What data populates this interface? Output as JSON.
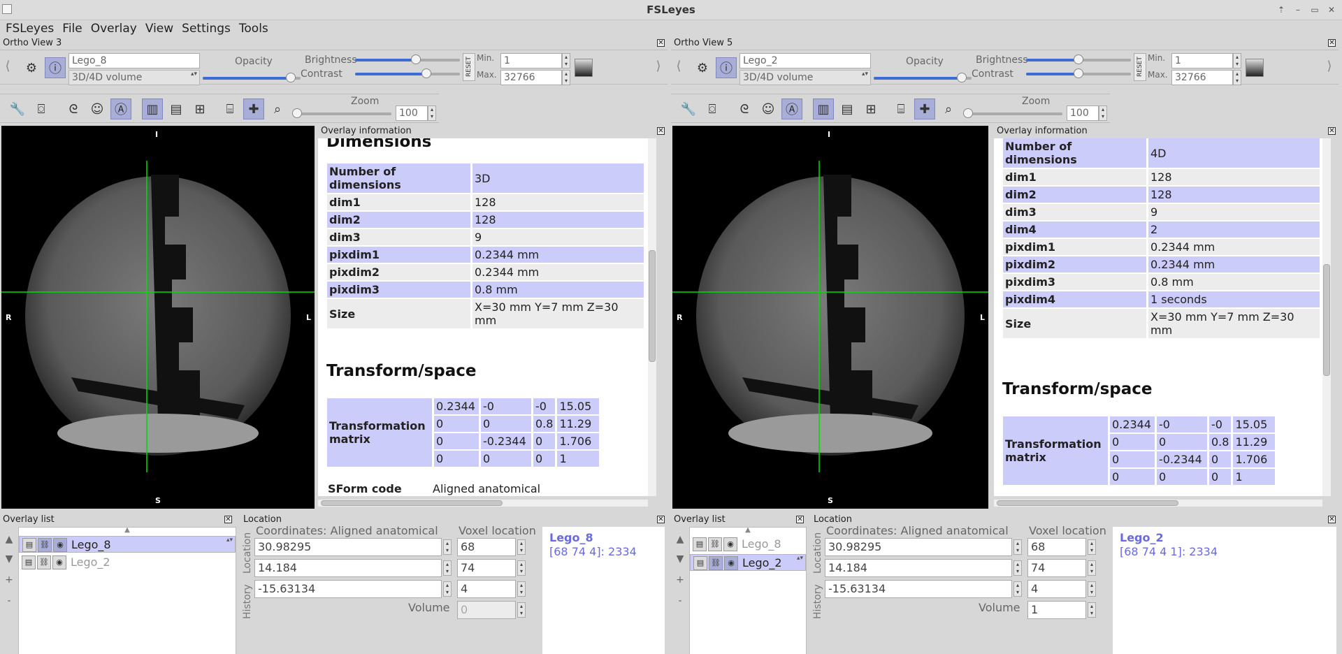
{
  "window": {
    "title": "FSLeyes"
  },
  "menu": [
    "FSLeyes",
    "File",
    "Overlay",
    "View",
    "Settings",
    "Tools"
  ],
  "views": [
    {
      "title": "Ortho View 3",
      "overlay_name": "Lego_8",
      "overlay_type": "3D/4D volume",
      "opacity_label": "Opacity",
      "opacity": 0.9,
      "brightness_label": "Brightness",
      "brightness": 0.58,
      "contrast_label": "Contrast",
      "contrast": 0.68,
      "reset_label": "RESET",
      "min_label": "Min.",
      "min_value": "1",
      "max_label": "Max.",
      "max_value": "32766",
      "zoom_label": "Zoom",
      "zoom_value": "100",
      "orient": {
        "top": "I",
        "bottom": "S",
        "left": "R",
        "right": "L"
      },
      "info": {
        "panel_title": "Overlay information",
        "dimensions_heading": "Dimensions",
        "dimensions": [
          {
            "key": "Number of dimensions",
            "value": "3D"
          },
          {
            "key": "dim1",
            "value": "128"
          },
          {
            "key": "dim2",
            "value": "128"
          },
          {
            "key": "dim3",
            "value": "9"
          },
          {
            "key": "pixdim1",
            "value": "0.2344 mm"
          },
          {
            "key": "pixdim2",
            "value": "0.2344 mm"
          },
          {
            "key": "pixdim3",
            "value": "0.8 mm"
          },
          {
            "key": "Size",
            "value": "X=30 mm Y=7 mm Z=30 mm"
          }
        ],
        "transform_heading": "Transform/space",
        "matrix_label": "Transformation matrix",
        "matrix": [
          [
            "0.2344",
            "-0",
            "-0",
            "15.05"
          ],
          [
            "0",
            "0",
            "0.8",
            "11.29"
          ],
          [
            "0",
            "-0.2344",
            "0",
            "1.706"
          ],
          [
            "0",
            "0",
            "0",
            "1"
          ]
        ],
        "sform_label": "SForm code",
        "sform_value": "Aligned anatomical"
      },
      "overlay_list": {
        "title": "Overlay list",
        "items": [
          {
            "name": "Lego_8",
            "selected": true,
            "visible": true
          },
          {
            "name": "Lego_2",
            "selected": false,
            "visible": false
          }
        ]
      },
      "location": {
        "title": "Location",
        "coord_label": "Coordinates: Aligned anatomical",
        "voxel_label": "Voxel location",
        "coords": [
          "30.98295",
          "14.184",
          "-15.63134"
        ],
        "voxels": [
          "68",
          "74",
          "4"
        ],
        "volume_label": "Volume",
        "volume_value": "0",
        "volume_enabled": false,
        "tab_location": "Location",
        "tab_history": "History",
        "info_name": "Lego_8",
        "info_value": "[68 74 4]: 2334"
      }
    },
    {
      "title": "Ortho View 5",
      "overlay_name": "Lego_2",
      "overlay_type": "3D/4D volume",
      "opacity_label": "Opacity",
      "opacity": 0.9,
      "brightness_label": "Brightness",
      "brightness": 0.5,
      "contrast_label": "Contrast",
      "contrast": 0.5,
      "reset_label": "RESET",
      "min_label": "Min.",
      "min_value": "1",
      "max_label": "Max.",
      "max_value": "32766",
      "zoom_label": "Zoom",
      "zoom_value": "100",
      "orient": {
        "top": "I",
        "bottom": "S",
        "left": "R",
        "right": "L"
      },
      "info": {
        "panel_title": "Overlay information",
        "dimensions_heading": "",
        "dimensions": [
          {
            "key": "Number of dimensions",
            "value": "4D"
          },
          {
            "key": "dim1",
            "value": "128"
          },
          {
            "key": "dim2",
            "value": "128"
          },
          {
            "key": "dim3",
            "value": "9"
          },
          {
            "key": "dim4",
            "value": "2"
          },
          {
            "key": "pixdim1",
            "value": "0.2344 mm"
          },
          {
            "key": "pixdim2",
            "value": "0.2344 mm"
          },
          {
            "key": "pixdim3",
            "value": "0.8 mm"
          },
          {
            "key": "pixdim4",
            "value": "1 seconds"
          },
          {
            "key": "Size",
            "value": "X=30 mm Y=7 mm Z=30 mm"
          }
        ],
        "transform_heading": "Transform/space",
        "matrix_label": "Transformation matrix",
        "matrix": [
          [
            "0.2344",
            "-0",
            "-0",
            "15.05"
          ],
          [
            "0",
            "0",
            "0.8",
            "11.29"
          ],
          [
            "0",
            "-0.2344",
            "0",
            "1.706"
          ],
          [
            "0",
            "0",
            "0",
            "1"
          ]
        ],
        "sform_label": "",
        "sform_value": ""
      },
      "overlay_list": {
        "title": "Overlay list",
        "items": [
          {
            "name": "Lego_8",
            "selected": false,
            "visible": false
          },
          {
            "name": "Lego_2",
            "selected": true,
            "visible": true
          }
        ]
      },
      "location": {
        "title": "Location",
        "coord_label": "Coordinates: Aligned anatomical",
        "voxel_label": "Voxel location",
        "coords": [
          "30.98295",
          "14.184",
          "-15.63134"
        ],
        "voxels": [
          "68",
          "74",
          "4"
        ],
        "volume_label": "Volume",
        "volume_value": "1",
        "volume_enabled": true,
        "tab_location": "Location",
        "tab_history": "History",
        "info_name": "Lego_2",
        "info_value": "[68 74 4 1]: 2334"
      }
    }
  ],
  "colors": {
    "selection": "#ccccfa",
    "accent": "#3c6cd4",
    "crosshair": "#00dd00",
    "info_text": "#6a6ae0"
  },
  "icons": [
    "gear-icon",
    "info-icon",
    "wrench-icon",
    "camera-icon",
    "brain-icon",
    "face-icon",
    "anatomical-icon",
    "layout-horizontal-icon",
    "layout-vertical-icon",
    "layout-grid-icon",
    "movie-icon",
    "crosshair-icon",
    "zoom-icon",
    "chevron-left-icon",
    "chevron-right-icon"
  ]
}
